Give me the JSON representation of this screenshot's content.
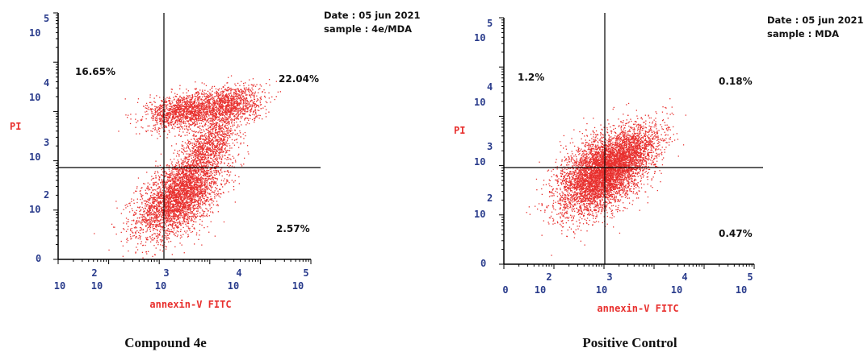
{
  "colors": {
    "dots": "#e8302e",
    "axis": "#000000",
    "tick_label": "#2a3c8c",
    "axis_title": "#e8302e",
    "text": "#111111"
  },
  "chart_data": [
    {
      "type": "scatter",
      "caption": "Compound 4e",
      "xlabel": "annexin-V FITC",
      "ylabel": "PI",
      "scale": "log",
      "xlim": [
        1,
        100000
      ],
      "ylim": [
        1,
        100000
      ],
      "x_ticks": [
        {
          "base": "10",
          "exp": "0"
        },
        {
          "base": "10",
          "exp": "2"
        },
        {
          "base": "10",
          "exp": "3"
        },
        {
          "base": "10",
          "exp": "4"
        },
        {
          "base": "10",
          "exp": "5"
        }
      ],
      "y_ticks": [
        {
          "base": "",
          "exp": "0"
        },
        {
          "base": "10",
          "exp": "2"
        },
        {
          "base": "10",
          "exp": "3"
        },
        {
          "base": "10",
          "exp": "4"
        },
        {
          "base": "10",
          "exp": "5"
        }
      ],
      "gates": {
        "x": 1000,
        "y": 1000
      },
      "info": {
        "date": "Date : 05 jun 2021",
        "sample": "sample : 4e/MDA"
      },
      "quadrants": {
        "upper_left": "16.65%",
        "upper_right": "22.04%",
        "lower_left": "",
        "lower_right": "2.57%"
      },
      "clusters": [
        {
          "n": 3600,
          "cx": 2.4,
          "cy": 1.3,
          "sx": 0.42,
          "sy": 0.42,
          "rho": 0.55
        },
        {
          "n": 1300,
          "cx": 2.45,
          "cy": 3.0,
          "sx": 0.35,
          "sy": 0.18,
          "rho": 0.2
        },
        {
          "n": 1200,
          "cx": 3.35,
          "cy": 3.15,
          "sx": 0.35,
          "sy": 0.2,
          "rho": 0.2
        },
        {
          "n": 900,
          "cx": 3.0,
          "cy": 2.35,
          "sx": 0.28,
          "sy": 0.3,
          "rho": 0.6
        }
      ]
    },
    {
      "type": "scatter",
      "caption": "Positive Control",
      "xlabel": "annexin-V FITC",
      "ylabel": "PI",
      "scale": "log",
      "xlim": [
        1,
        100000
      ],
      "ylim": [
        1,
        100000
      ],
      "x_ticks": [
        {
          "base": "",
          "exp": "0"
        },
        {
          "base": "10",
          "exp": "2"
        },
        {
          "base": "10",
          "exp": "3"
        },
        {
          "base": "10",
          "exp": "4"
        },
        {
          "base": "10",
          "exp": "5"
        }
      ],
      "y_ticks": [
        {
          "base": "",
          "exp": "0"
        },
        {
          "base": "10",
          "exp": "2"
        },
        {
          "base": "10",
          "exp": "3"
        },
        {
          "base": "10",
          "exp": "4"
        },
        {
          "base": "10",
          "exp": "5"
        }
      ],
      "gates": {
        "x": 1000,
        "y": 1000
      },
      "info": {
        "date": "Date : 05 jun 2021",
        "sample": "sample : MDA"
      },
      "quadrants": {
        "upper_left": "1.2%",
        "upper_right": "0.18%",
        "lower_left": "",
        "lower_right": "0.47%"
      },
      "clusters": [
        {
          "n": 5200,
          "cx": 1.95,
          "cy": 1.85,
          "sx": 0.42,
          "sy": 0.4,
          "rho": 0.45
        },
        {
          "n": 900,
          "cx": 2.6,
          "cy": 2.35,
          "sx": 0.3,
          "sy": 0.3,
          "rho": 0.4
        }
      ]
    }
  ]
}
